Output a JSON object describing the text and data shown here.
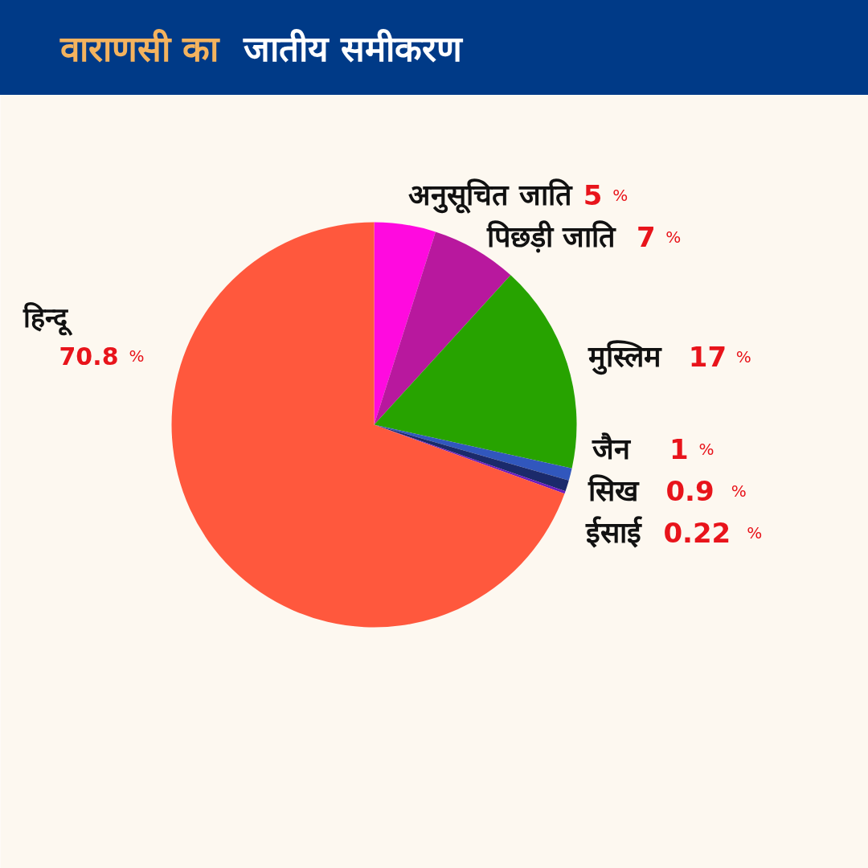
{
  "chart_data": {
    "type": "pie",
    "title": "वाराणसी का जातीय समीकरण",
    "categories": [
      "अनुसूचित जाति",
      "पिछड़ी जाति",
      "मुस्लिम",
      "जैन",
      "सिख",
      "ईसाई",
      "हिन्दू"
    ],
    "values": [
      5,
      7,
      17,
      1,
      0.9,
      0.22,
      70.8
    ],
    "colors": [
      "#ff0adf",
      "#b8189e",
      "#27a300",
      "#3157bd",
      "#1b2a6b",
      "#6a1bbf",
      "#ff583d"
    ],
    "value_labels": [
      "5 %",
      "7 %",
      "17 %",
      "1 %",
      "0.9 %",
      "0.22 %",
      "70.8 %"
    ]
  }
}
